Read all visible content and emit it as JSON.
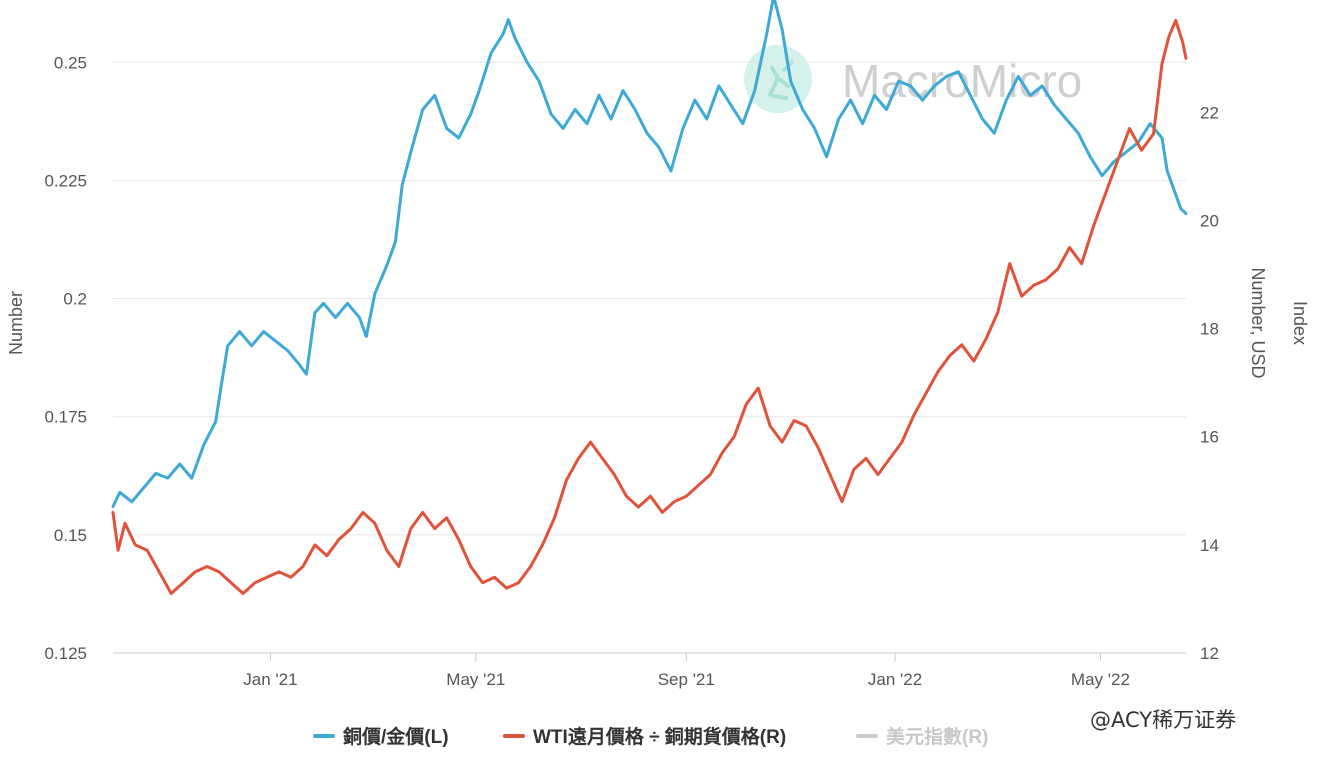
{
  "watermark": {
    "brand": "MacroMicro"
  },
  "credit": "@ACY稀万证券",
  "chart_data": {
    "type": "line",
    "x_ticks": [
      "Jan '21",
      "May '21",
      "Sep '21",
      "Jan '22",
      "May '22"
    ],
    "x_tick_dates": [
      "2021-01-01",
      "2021-05-01",
      "2021-09-01",
      "2022-01-01",
      "2022-05-01"
    ],
    "x_range": [
      "2020-10-01",
      "2022-06-20"
    ],
    "left_axis": {
      "label": "Number",
      "range": [
        0.125,
        0.26
      ],
      "ticks": [
        "0.25",
        "0.225",
        "0.2",
        "0.175",
        "0.15",
        "0.125"
      ]
    },
    "right_axis_1": {
      "label": "Number, USD",
      "range": [
        12,
        23.8
      ],
      "ticks": [
        "22",
        "20",
        "18",
        "16",
        "14",
        "12"
      ]
    },
    "right_axis_2": {
      "label": "Index"
    },
    "grid": true,
    "legend_position": "bottom",
    "series": [
      {
        "name": "銅價/金價(L)",
        "axis": "left",
        "color": "#3ea8d6",
        "points": [
          [
            "2020-10-01",
            0.156
          ],
          [
            "2020-10-05",
            0.159
          ],
          [
            "2020-10-12",
            0.157
          ],
          [
            "2020-10-19",
            0.16
          ],
          [
            "2020-10-26",
            0.163
          ],
          [
            "2020-11-02",
            0.162
          ],
          [
            "2020-11-09",
            0.165
          ],
          [
            "2020-11-16",
            0.162
          ],
          [
            "2020-11-23",
            0.169
          ],
          [
            "2020-11-30",
            0.174
          ],
          [
            "2020-12-03",
            0.181
          ],
          [
            "2020-12-07",
            0.19
          ],
          [
            "2020-12-14",
            0.193
          ],
          [
            "2020-12-21",
            0.19
          ],
          [
            "2020-12-28",
            0.193
          ],
          [
            "2021-01-04",
            0.191
          ],
          [
            "2021-01-11",
            0.189
          ],
          [
            "2021-01-18",
            0.186
          ],
          [
            "2021-01-22",
            0.184
          ],
          [
            "2021-01-27",
            0.197
          ],
          [
            "2021-02-01",
            0.199
          ],
          [
            "2021-02-08",
            0.196
          ],
          [
            "2021-02-15",
            0.199
          ],
          [
            "2021-02-22",
            0.196
          ],
          [
            "2021-02-26",
            0.192
          ],
          [
            "2021-03-03",
            0.201
          ],
          [
            "2021-03-10",
            0.207
          ],
          [
            "2021-03-15",
            0.212
          ],
          [
            "2021-03-19",
            0.224
          ],
          [
            "2021-03-24",
            0.231
          ],
          [
            "2021-03-31",
            0.24
          ],
          [
            "2021-04-07",
            0.243
          ],
          [
            "2021-04-14",
            0.236
          ],
          [
            "2021-04-21",
            0.234
          ],
          [
            "2021-04-28",
            0.239
          ],
          [
            "2021-05-03",
            0.244
          ],
          [
            "2021-05-10",
            0.252
          ],
          [
            "2021-05-17",
            0.256
          ],
          [
            "2021-05-20",
            0.259
          ],
          [
            "2021-05-24",
            0.255
          ],
          [
            "2021-05-31",
            0.25
          ],
          [
            "2021-06-07",
            0.246
          ],
          [
            "2021-06-14",
            0.239
          ],
          [
            "2021-06-21",
            0.236
          ],
          [
            "2021-06-28",
            0.24
          ],
          [
            "2021-07-05",
            0.237
          ],
          [
            "2021-07-12",
            0.243
          ],
          [
            "2021-07-19",
            0.238
          ],
          [
            "2021-07-26",
            0.244
          ],
          [
            "2021-08-02",
            0.24
          ],
          [
            "2021-08-09",
            0.235
          ],
          [
            "2021-08-16",
            0.232
          ],
          [
            "2021-08-23",
            0.227
          ],
          [
            "2021-08-30",
            0.236
          ],
          [
            "2021-09-06",
            0.242
          ],
          [
            "2021-09-13",
            0.238
          ],
          [
            "2021-09-20",
            0.245
          ],
          [
            "2021-09-27",
            0.241
          ],
          [
            "2021-10-04",
            0.237
          ],
          [
            "2021-10-11",
            0.244
          ],
          [
            "2021-10-18",
            0.256
          ],
          [
            "2021-10-22",
            0.264
          ],
          [
            "2021-10-27",
            0.257
          ],
          [
            "2021-11-01",
            0.246
          ],
          [
            "2021-11-08",
            0.24
          ],
          [
            "2021-11-15",
            0.236
          ],
          [
            "2021-11-22",
            0.23
          ],
          [
            "2021-11-29",
            0.238
          ],
          [
            "2021-12-06",
            0.242
          ],
          [
            "2021-12-13",
            0.237
          ],
          [
            "2021-12-20",
            0.243
          ],
          [
            "2021-12-27",
            0.24
          ],
          [
            "2022-01-03",
            0.246
          ],
          [
            "2022-01-10",
            0.245
          ],
          [
            "2022-01-17",
            0.242
          ],
          [
            "2022-01-24",
            0.245
          ],
          [
            "2022-01-31",
            0.247
          ],
          [
            "2022-02-07",
            0.248
          ],
          [
            "2022-02-14",
            0.243
          ],
          [
            "2022-02-21",
            0.238
          ],
          [
            "2022-02-28",
            0.235
          ],
          [
            "2022-03-07",
            0.242
          ],
          [
            "2022-03-14",
            0.247
          ],
          [
            "2022-03-21",
            0.243
          ],
          [
            "2022-03-28",
            0.245
          ],
          [
            "2022-04-04",
            0.241
          ],
          [
            "2022-04-11",
            0.238
          ],
          [
            "2022-04-18",
            0.235
          ],
          [
            "2022-04-25",
            0.23
          ],
          [
            "2022-05-02",
            0.226
          ],
          [
            "2022-05-09",
            0.229
          ],
          [
            "2022-05-16",
            0.231
          ],
          [
            "2022-05-23",
            0.233
          ],
          [
            "2022-05-30",
            0.237
          ],
          [
            "2022-06-06",
            0.234
          ],
          [
            "2022-06-09",
            0.227
          ],
          [
            "2022-06-13",
            0.223
          ],
          [
            "2022-06-17",
            0.219
          ],
          [
            "2022-06-20",
            0.218
          ]
        ]
      },
      {
        "name": "WTI遠月價格 ÷ 銅期貨價格(R)",
        "axis": "right",
        "color": "#e0533a",
        "points": [
          [
            "2020-10-01",
            14.6
          ],
          [
            "2020-10-04",
            13.9
          ],
          [
            "2020-10-08",
            14.4
          ],
          [
            "2020-10-14",
            14.0
          ],
          [
            "2020-10-21",
            13.9
          ],
          [
            "2020-10-28",
            13.5
          ],
          [
            "2020-11-04",
            13.1
          ],
          [
            "2020-11-11",
            13.3
          ],
          [
            "2020-11-18",
            13.5
          ],
          [
            "2020-11-25",
            13.6
          ],
          [
            "2020-12-02",
            13.5
          ],
          [
            "2020-12-09",
            13.3
          ],
          [
            "2020-12-16",
            13.1
          ],
          [
            "2020-12-23",
            13.3
          ],
          [
            "2020-12-30",
            13.4
          ],
          [
            "2021-01-06",
            13.5
          ],
          [
            "2021-01-13",
            13.4
          ],
          [
            "2021-01-20",
            13.6
          ],
          [
            "2021-01-27",
            14.0
          ],
          [
            "2021-02-03",
            13.8
          ],
          [
            "2021-02-10",
            14.1
          ],
          [
            "2021-02-17",
            14.3
          ],
          [
            "2021-02-24",
            14.6
          ],
          [
            "2021-03-03",
            14.4
          ],
          [
            "2021-03-10",
            13.9
          ],
          [
            "2021-03-17",
            13.6
          ],
          [
            "2021-03-24",
            14.3
          ],
          [
            "2021-03-31",
            14.6
          ],
          [
            "2021-04-07",
            14.3
          ],
          [
            "2021-04-14",
            14.5
          ],
          [
            "2021-04-21",
            14.1
          ],
          [
            "2021-04-28",
            13.6
          ],
          [
            "2021-05-05",
            13.3
          ],
          [
            "2021-05-12",
            13.4
          ],
          [
            "2021-05-19",
            13.2
          ],
          [
            "2021-05-26",
            13.3
          ],
          [
            "2021-06-02",
            13.6
          ],
          [
            "2021-06-09",
            14.0
          ],
          [
            "2021-06-16",
            14.5
          ],
          [
            "2021-06-23",
            15.2
          ],
          [
            "2021-06-30",
            15.6
          ],
          [
            "2021-07-07",
            15.9
          ],
          [
            "2021-07-14",
            15.6
          ],
          [
            "2021-07-21",
            15.3
          ],
          [
            "2021-07-28",
            14.9
          ],
          [
            "2021-08-04",
            14.7
          ],
          [
            "2021-08-11",
            14.9
          ],
          [
            "2021-08-18",
            14.6
          ],
          [
            "2021-08-25",
            14.8
          ],
          [
            "2021-09-01",
            14.9
          ],
          [
            "2021-09-08",
            15.1
          ],
          [
            "2021-09-15",
            15.3
          ],
          [
            "2021-09-22",
            15.7
          ],
          [
            "2021-09-29",
            16.0
          ],
          [
            "2021-10-06",
            16.6
          ],
          [
            "2021-10-13",
            16.9
          ],
          [
            "2021-10-20",
            16.2
          ],
          [
            "2021-10-27",
            15.9
          ],
          [
            "2021-11-03",
            16.3
          ],
          [
            "2021-11-10",
            16.2
          ],
          [
            "2021-11-17",
            15.8
          ],
          [
            "2021-11-24",
            15.3
          ],
          [
            "2021-12-01",
            14.8
          ],
          [
            "2021-12-08",
            15.4
          ],
          [
            "2021-12-15",
            15.6
          ],
          [
            "2021-12-22",
            15.3
          ],
          [
            "2021-12-29",
            15.6
          ],
          [
            "2022-01-05",
            15.9
          ],
          [
            "2022-01-12",
            16.4
          ],
          [
            "2022-01-19",
            16.8
          ],
          [
            "2022-01-26",
            17.2
          ],
          [
            "2022-02-02",
            17.5
          ],
          [
            "2022-02-09",
            17.7
          ],
          [
            "2022-02-16",
            17.4
          ],
          [
            "2022-02-23",
            17.8
          ],
          [
            "2022-03-02",
            18.3
          ],
          [
            "2022-03-09",
            19.2
          ],
          [
            "2022-03-16",
            18.6
          ],
          [
            "2022-03-23",
            18.8
          ],
          [
            "2022-03-30",
            18.9
          ],
          [
            "2022-04-06",
            19.1
          ],
          [
            "2022-04-13",
            19.5
          ],
          [
            "2022-04-20",
            19.2
          ],
          [
            "2022-04-27",
            19.9
          ],
          [
            "2022-05-04",
            20.5
          ],
          [
            "2022-05-11",
            21.1
          ],
          [
            "2022-05-18",
            21.7
          ],
          [
            "2022-05-25",
            21.3
          ],
          [
            "2022-06-01",
            21.6
          ],
          [
            "2022-06-06",
            22.9
          ],
          [
            "2022-06-10",
            23.4
          ],
          [
            "2022-06-14",
            23.7
          ],
          [
            "2022-06-18",
            23.3
          ],
          [
            "2022-06-20",
            23.0
          ]
        ]
      },
      {
        "name": "美元指數(R)",
        "axis": "right",
        "color": "#cccccc",
        "hidden": true
      }
    ]
  }
}
